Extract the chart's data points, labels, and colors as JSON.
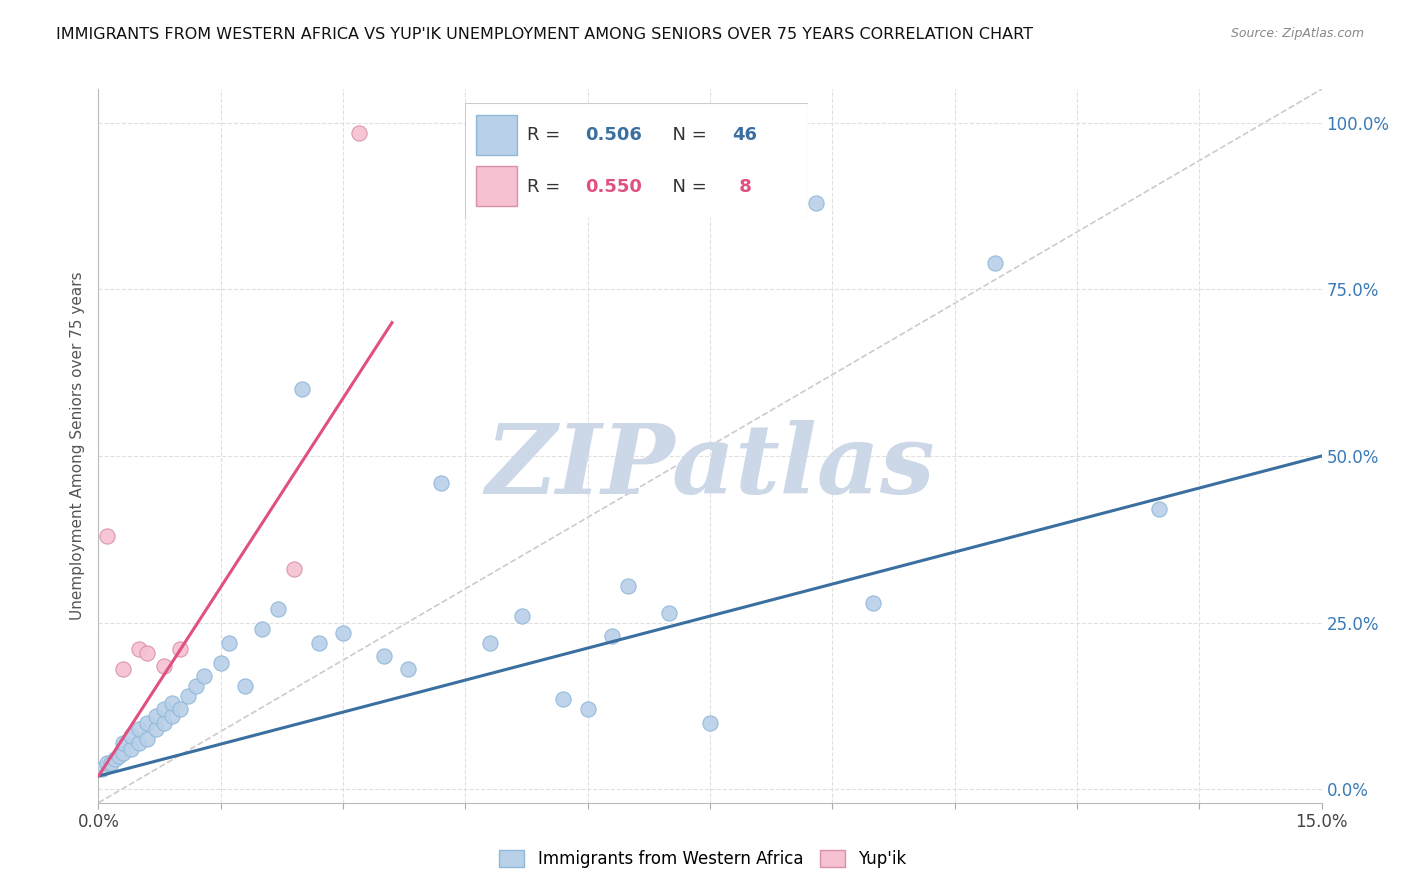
{
  "title": "IMMIGRANTS FROM WESTERN AFRICA VS YUP'IK UNEMPLOYMENT AMONG SENIORS OVER 75 YEARS CORRELATION CHART",
  "source": "Source: ZipAtlas.com",
  "ylabel": "Unemployment Among Seniors over 75 years",
  "xlim": [
    0.0,
    0.15
  ],
  "ylim": [
    -0.02,
    1.05
  ],
  "xticks": [
    0.0,
    0.015,
    0.03,
    0.045,
    0.06,
    0.075,
    0.09,
    0.105,
    0.12,
    0.135,
    0.15
  ],
  "yticks_right": [
    0.0,
    0.25,
    0.5,
    0.75,
    1.0
  ],
  "yticklabels_right": [
    "0.0%",
    "25.0%",
    "50.0%",
    "75.0%",
    "100.0%"
  ],
  "blue_color": "#b8d0e8",
  "pink_color": "#f5c0d0",
  "blue_line_color": "#3a6fa0",
  "pink_line_color": "#e05080",
  "diag_color": "#d0c8d0",
  "watermark": "ZIPatlas",
  "watermark_color": "#ccd8e8",
  "legend_R1": "R = 0.506",
  "legend_N1": "N = 46",
  "legend_R2": "R = 0.550",
  "legend_N2": "N =  8",
  "blue_scatter_x": [
    0.0005,
    0.001,
    0.0015,
    0.002,
    0.0025,
    0.003,
    0.003,
    0.004,
    0.004,
    0.005,
    0.005,
    0.006,
    0.006,
    0.007,
    0.007,
    0.008,
    0.008,
    0.009,
    0.009,
    0.01,
    0.011,
    0.012,
    0.013,
    0.015,
    0.016,
    0.018,
    0.02,
    0.022,
    0.025,
    0.027,
    0.03,
    0.035,
    0.038,
    0.042,
    0.048,
    0.052,
    0.057,
    0.06,
    0.063,
    0.065,
    0.07,
    0.075,
    0.088,
    0.095,
    0.11,
    0.13
  ],
  "blue_scatter_y": [
    0.03,
    0.04,
    0.04,
    0.045,
    0.05,
    0.055,
    0.07,
    0.06,
    0.08,
    0.07,
    0.09,
    0.075,
    0.1,
    0.09,
    0.11,
    0.1,
    0.12,
    0.11,
    0.13,
    0.12,
    0.14,
    0.155,
    0.17,
    0.19,
    0.22,
    0.155,
    0.24,
    0.27,
    0.6,
    0.22,
    0.235,
    0.2,
    0.18,
    0.46,
    0.22,
    0.26,
    0.135,
    0.12,
    0.23,
    0.305,
    0.265,
    0.1,
    0.88,
    0.28,
    0.79,
    0.42
  ],
  "pink_scatter_x": [
    0.001,
    0.003,
    0.005,
    0.006,
    0.008,
    0.01,
    0.024,
    0.032
  ],
  "pink_scatter_y": [
    0.38,
    0.18,
    0.21,
    0.205,
    0.185,
    0.21,
    0.33,
    0.985
  ],
  "blue_line_x": [
    0.0,
    0.15
  ],
  "blue_line_y": [
    0.02,
    0.5
  ],
  "pink_line_x": [
    0.0,
    0.036
  ],
  "pink_line_y": [
    0.02,
    0.7
  ],
  "background_color": "#ffffff",
  "grid_color": "#e0e0e0"
}
